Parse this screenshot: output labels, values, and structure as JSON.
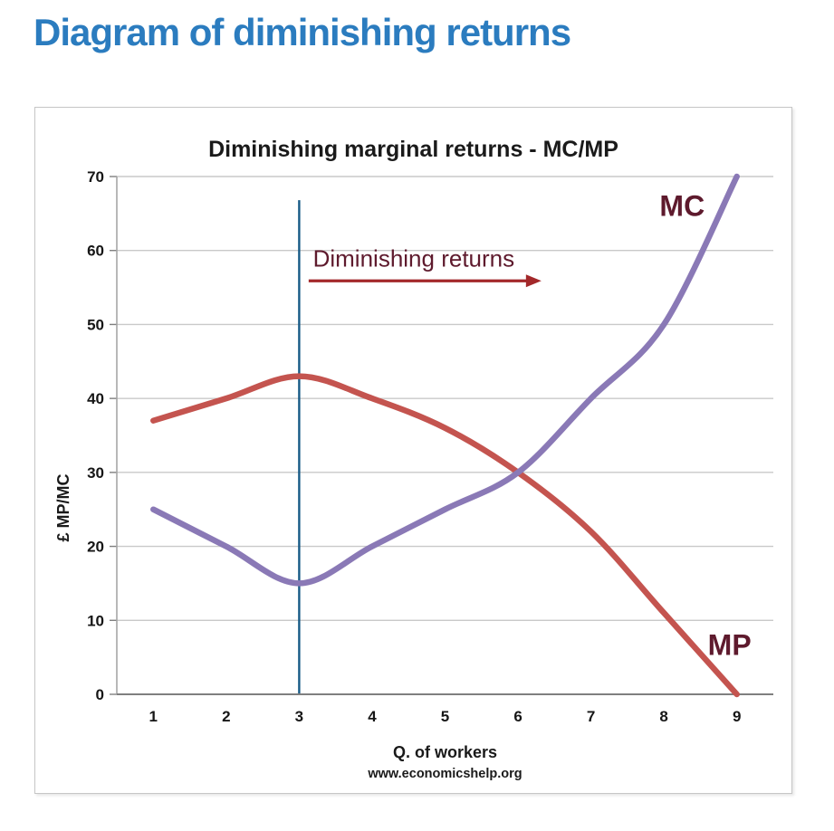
{
  "page": {
    "title": "Diagram of diminishing returns",
    "title_color": "#2b7cbf"
  },
  "chart_data": {
    "type": "line",
    "title": "Diminishing marginal returns - MC/MP",
    "xlabel": "Q. of workers",
    "ylabel": "£ MP/MC",
    "footer": "www.economicshelp.org",
    "x": [
      1,
      2,
      3,
      4,
      5,
      6,
      7,
      8,
      9
    ],
    "xlim": [
      0.5,
      9.5
    ],
    "ylim": [
      0,
      70
    ],
    "ytick_step": 10,
    "grid": true,
    "legend_position": "none",
    "series": [
      {
        "name": "MP",
        "color": "#c4544f",
        "values": [
          37,
          40,
          43,
          40,
          36,
          30,
          22,
          11,
          0
        ],
        "label": {
          "x": 8.9,
          "y": 6.7
        }
      },
      {
        "name": "MC",
        "color": "#8a79b6",
        "values": [
          25,
          20,
          15,
          20,
          25,
          30,
          40,
          50,
          70
        ],
        "label": {
          "x": 8.25,
          "y": 66.0
        }
      }
    ],
    "series_label_color": "#5e1a2d",
    "vline": {
      "x": 3,
      "from": 0,
      "to": 66.8,
      "color": "#175a86"
    },
    "annotation": {
      "text": "Diminishing returns",
      "text_color": "#5e1a2d",
      "arrow_color": "#a3282a",
      "x_start": 3.13,
      "x_end": 6.32,
      "arrow_y": 55.9,
      "text_x": 4.57,
      "text_y": 58.8
    },
    "axis_color": "#a6a6a6",
    "baseline_color": "#7f7f7f",
    "gridline_color": "#c9c9c9",
    "tick_text_color": "#161616"
  }
}
